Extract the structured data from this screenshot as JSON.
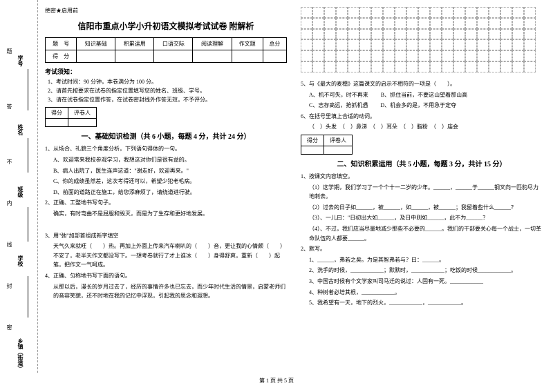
{
  "binding": {
    "labels": [
      "乡镇（街道）",
      "学校",
      "班级",
      "姓名",
      "学号"
    ],
    "marks": [
      "密",
      "封",
      "线",
      "内",
      "不",
      "答",
      "题"
    ]
  },
  "headerNote": "绝密★启用前",
  "title": "信阳市重点小学小升初语文模拟考试试卷 附解析",
  "scoreTable": {
    "headers": [
      "题　号",
      "知识基础",
      "积累运用",
      "口语交际",
      "阅读理解",
      "作文题",
      "总分"
    ],
    "row2": "得　分"
  },
  "examNotice": {
    "heading": "考试须知：",
    "items": [
      "1、考试时间：90 分钟，本卷满分为 100 分。",
      "2、请首先按要求在试卷的指定位置填写您的姓名、班级、学号。",
      "3、请在试卷指定位置作答，在试卷密封线外作答无效，不予评分。"
    ]
  },
  "miniTable": {
    "c1": "得分",
    "c2": "评卷人"
  },
  "section1": {
    "title": "一、基础知识检测（共 6 小题，每题 4 分，共计 24 分）",
    "q1": "1、从场合、礼貌三个角度分析，下列语句得体的一句。",
    "q1a": "A、欢迎常来我校参观学习，我想这对你们是很有益的。",
    "q1b": "B、病人出院了，医生连声这道：\"谢走好，欢迎再来。\"",
    "q1c": "C、你的成绩虽然差，这次考得还可以，希望少犯老毛病。",
    "q1d": "D、前面的道路正在施工，给您添麻烦了，请绕道进行驶。",
    "q2": "2、正确、工整地书写句子。",
    "q2text": "确实，有时弯曲不是屈服和毁灭，而是为了生存和更好地发展。",
    "q3": "3、用\"弛\"加部首组成新字填空",
    "q3text": "天气久来就旺（　　）热。再加上外面上传来汽车喇叭的（　　）音，更让我的心情颇（　　）不安了，老半天作文都没写下。一想考卷就行了才上谁冰（　　）身得舒爽，重新（　　）起笔，把作文一气呵成。",
    "q4": "4、正确、匀称地书写下面的语句。",
    "q4text": "从那以后，漫长的岁月过去了，经历的事情许多也已忘去，而少年时代生活的情景，启蒙老师们的音容笑貌，还不时地在我的记忆中浮现，引起我的思念和遐想。"
  },
  "rightCol": {
    "q5": "5、与《最大的麦穗》这篇课文的启示不相符的一项是（　　）。",
    "q5a": "A、机不可失，时不再来",
    "q5b": "B、抓住当前，不要这山望着那山高",
    "q5c": "C、志存高远，抢抓机遇",
    "q5d": "D、机会多的是，不用急于定夺",
    "q6": "6、在括号里填上合适的动词。",
    "q6opts": "（　）头发　（　）鼻涕　（　）耳朵　（　）脂粉　（　）庙会"
  },
  "section2": {
    "title": "二、知识积累运用（共 5 小题，每题 3 分，共计 15 分）",
    "q1": "1、按课文内容填空。",
    "q1_1": "（1）这学期，我们学习了一个个十一二岁的少年。______，______于______钢叉向一匹豹尽力地刺去。",
    "q1_2": "（2）过去的日子如______，被______，如______，被______；我留着些什么______？",
    "q1_3": "（3）、一儿曰：\"日初出大如______，及日中则如______，此不为______？",
    "q1_4": "（4）、不过，我们应当尽量地减少那些不必要的______。我们的干部要关心每一个战士，一切革命队伍的人都要______。",
    "q2": "2、默写。",
    "q2_1": "1、______，弗若之矣。为是其智弗若与？曰：______。",
    "q2_2": "2、洗手的时候，____________；默默时，____________；吃饭的时候____________。",
    "q2_3": "3、中国古时候有个文学家叫司马迁的说过：人固有一死。____________",
    "q2_4": "4、种树者必培其根，____________。",
    "q2_5": "5、我希望有一天，地下的烈火，____________，____________。"
  },
  "footer": "第 1 页 共 5 页"
}
